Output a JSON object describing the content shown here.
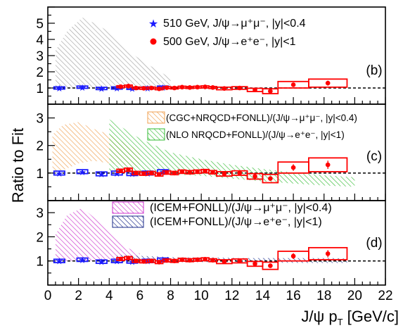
{
  "chart_data": {
    "type": "scatter",
    "xlabel": "J/ψ p_T [GeV/c]",
    "ylabel": "Ratio to Fit",
    "xlim": [
      0,
      22
    ],
    "x_ticks": [
      "0",
      "2",
      "4",
      "6",
      "8",
      "10",
      "12",
      "14",
      "16",
      "18",
      "20",
      "22"
    ],
    "reference_line": 1,
    "colors": {
      "star": "#1a1aff",
      "circle": "#ff0000",
      "hatch_grey": "#9a9a9a",
      "hatch_orange": "#f0a050",
      "hatch_green": "#33bb33",
      "hatch_magenta": "#cc33cc",
      "hatch_navy": "#1a2a8a"
    },
    "data_510": {
      "x": [
        0.75,
        2.25,
        3.5,
        4.5,
        5.5,
        6.5,
        7.5
      ],
      "y": [
        1.0,
        1.05,
        0.97,
        1.0,
        0.98,
        1.0,
        1.05
      ],
      "box_halfwidth": 0.35,
      "box_halfheight": 0.07
    },
    "data_500": {
      "x": [
        4.75,
        5.25,
        5.75,
        6.25,
        6.75,
        7.25,
        7.75,
        8.25,
        8.75,
        9.25,
        9.75,
        10.25,
        10.75,
        11.5,
        12.5,
        13.5,
        14.5,
        16.0,
        18.25
      ],
      "y": [
        1.08,
        1.12,
        1.0,
        0.98,
        1.0,
        0.95,
        1.02,
        1.0,
        1.05,
        1.03,
        1.05,
        1.07,
        1.03,
        0.97,
        1.0,
        0.88,
        0.8,
        1.2,
        1.3
      ],
      "xerr": [
        0.25,
        0.25,
        0.25,
        0.25,
        0.25,
        0.25,
        0.25,
        0.25,
        0.25,
        0.25,
        0.25,
        0.25,
        0.25,
        0.5,
        0.5,
        0.5,
        0.5,
        1.0,
        1.25
      ],
      "syst": [
        0.06,
        0.06,
        0.06,
        0.06,
        0.06,
        0.06,
        0.06,
        0.06,
        0.06,
        0.06,
        0.06,
        0.06,
        0.06,
        0.08,
        0.08,
        0.1,
        0.15,
        0.2,
        0.25
      ],
      "stat": [
        0.03,
        0.03,
        0.03,
        0.03,
        0.03,
        0.03,
        0.03,
        0.03,
        0.03,
        0.03,
        0.03,
        0.03,
        0.03,
        0.04,
        0.04,
        0.05,
        0.08,
        0.12,
        0.15
      ]
    },
    "panels": [
      {
        "label": "(b)",
        "ylim": [
          0,
          6
        ],
        "y_ticks": [
          1,
          2,
          3,
          4,
          5
        ],
        "legend": [
          {
            "marker": "star",
            "color": "#1a1aff",
            "text": "510 GeV, J/ψ→μ⁺μ⁻, |y|<0.4"
          },
          {
            "marker": "circle",
            "color": "#ff0000",
            "text": "500 GeV, J/ψ→e⁺e⁻, |y|<1"
          }
        ],
        "bands": [
          {
            "color": "#9a9a9a",
            "x": [
              0.5,
              1.25,
              2.25,
              3.25,
              4.25,
              5.25,
              6.25,
              7.25,
              8.0
            ],
            "lower": [
              0.95,
              0.97,
              1.0,
              1.0,
              0.98,
              0.97,
              0.98,
              0.98,
              0.98
            ],
            "upper": [
              3.3,
              4.5,
              5.35,
              4.9,
              4.3,
              3.3,
              2.6,
              2.05,
              1.6
            ]
          }
        ]
      },
      {
        "label": "(c)",
        "ylim": [
          0,
          3.5
        ],
        "y_ticks": [
          1,
          2,
          3
        ],
        "legend": [
          {
            "swatch": "#f0a050",
            "text": "(CGC+NRQCD+FONLL)/(J/ψ→μ⁺μ⁻, |y|<0.4)"
          },
          {
            "swatch": "#33bb33",
            "text": "(NLO NRQCD+FONLL)/(J/ψ→e⁺e⁻, |y|<1)"
          }
        ],
        "bands": [
          {
            "color": "#f0a050",
            "x": [
              0.3,
              1.0,
              2.0,
              3.0,
              4.0,
              5.0,
              6.0
            ],
            "lower": [
              1.05,
              1.1,
              1.35,
              1.45,
              1.35,
              1.3,
              1.2
            ],
            "upper": [
              2.4,
              2.75,
              2.85,
              2.6,
              2.4,
              2.1,
              1.8
            ]
          },
          {
            "color": "#33bb33",
            "x": [
              4.0,
              6.0,
              8.0,
              10.0,
              12.0,
              14.0,
              16.0,
              18.0,
              20.0
            ],
            "lower": [
              1.05,
              1.0,
              0.95,
              0.9,
              0.8,
              0.7,
              0.62,
              0.55,
              0.5
            ],
            "upper": [
              2.95,
              2.25,
              1.75,
              1.5,
              1.3,
              1.15,
              1.02,
              0.92,
              0.85
            ]
          }
        ]
      },
      {
        "label": "(d)",
        "ylim": [
          0,
          3.5
        ],
        "y_ticks": [
          1,
          2,
          3
        ],
        "legend": [
          {
            "swatch": "#cc33cc",
            "text": "(ICEM+FONLL)/(J/ψ→μ⁺μ⁻, |y|<0.4)"
          },
          {
            "swatch": "#1a2a8a",
            "text": "(ICEM+FONLL)/(J/ψ→e⁺e⁻, |y|<1)"
          }
        ],
        "bands": [
          {
            "color": "#cc33cc",
            "x": [
              0.5,
              1.25,
              2.25,
              3.0,
              4.0,
              5.0,
              6.0
            ],
            "lower": [
              1.0,
              1.0,
              1.0,
              1.02,
              1.02,
              1.0,
              1.0
            ],
            "upper": [
              2.1,
              2.9,
              3.2,
              2.8,
              2.2,
              1.6,
              1.3
            ]
          },
          {
            "color": "#1a2a8a",
            "x": [
              4.5,
              6.5,
              8.5,
              10.5,
              12.5,
              14.5,
              16.5,
              18.5,
              19.5
            ],
            "lower": [
              0.95,
              0.95,
              0.95,
              0.95,
              0.95,
              0.93,
              0.92,
              0.92,
              0.92
            ],
            "upper": [
              1.25,
              1.2,
              1.15,
              1.15,
              1.12,
              1.12,
              1.12,
              1.12,
              1.1
            ]
          }
        ]
      }
    ]
  }
}
